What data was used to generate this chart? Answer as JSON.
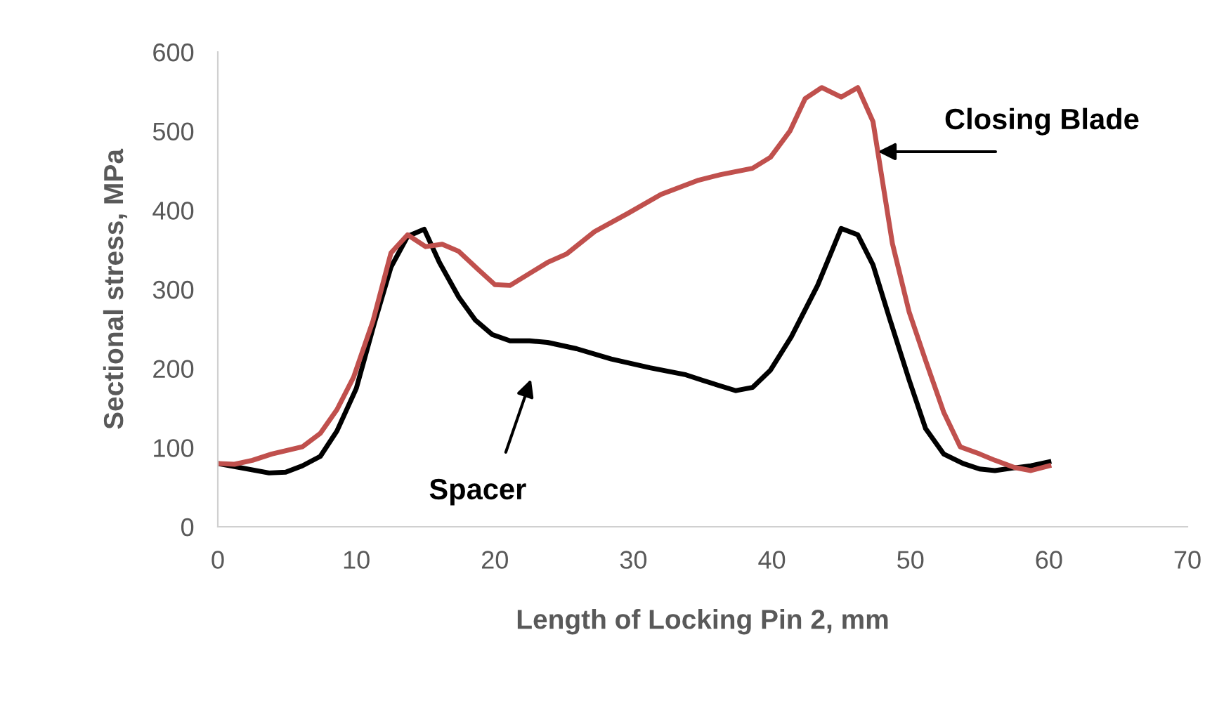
{
  "chart_data": {
    "type": "line",
    "xlabel": "Length of Locking Pin 2, mm",
    "ylabel": "Sectional stress, MPa",
    "xlim": [
      0,
      70
    ],
    "xticks": [
      0,
      10,
      20,
      30,
      40,
      50,
      60,
      70
    ],
    "ylim": [
      0,
      600
    ],
    "yticks": [
      0,
      100,
      200,
      300,
      400,
      500,
      600
    ],
    "grid": false,
    "legend": false,
    "marker": "none",
    "line_style": "solid",
    "series": [
      {
        "color": "#000000",
        "x": [
          0,
          3.7,
          4.9,
          6.1,
          7.4,
          8.6,
          10,
          11.3,
          12.5,
          13.7,
          14.9,
          16,
          17.4,
          18.6,
          19.8,
          21.1,
          22.5,
          23.8,
          25.9,
          28.4,
          31.2,
          33.8,
          35,
          37.4,
          38.6,
          39.9,
          41.4,
          43.3,
          45,
          46.2,
          47.3,
          48.5,
          49.9,
          51.1,
          52.4,
          53.8,
          55,
          56.1,
          57.3,
          58.7,
          60
        ],
        "values": [
          80,
          68,
          69,
          77,
          89,
          121,
          175,
          257,
          328,
          367,
          376,
          334,
          290,
          261,
          243,
          235,
          235,
          233,
          225,
          212,
          201,
          192,
          185,
          172,
          176,
          198,
          240,
          305,
          377,
          369,
          331,
          263,
          186,
          124,
          92,
          80,
          73,
          71,
          74,
          77,
          82
        ]
      },
      {
        "color": "#c0504d",
        "x": [
          0,
          1.2,
          2.5,
          3.9,
          6.1,
          7.4,
          8.6,
          9.8,
          11.2,
          12.5,
          13.7,
          15,
          16.2,
          17.4,
          18.8,
          20,
          21.1,
          23.8,
          25.2,
          27.2,
          29.6,
          32,
          34.7,
          36.3,
          38.6,
          39.9,
          41.3,
          42.4,
          43.6,
          45,
          46.2,
          47.3,
          48.7,
          49.9,
          51.1,
          52.4,
          53.6,
          55,
          56.1,
          57.5,
          58.7,
          60
        ],
        "values": [
          80,
          79,
          84,
          92,
          101,
          118,
          148,
          189,
          260,
          346,
          369,
          354,
          357,
          348,
          325,
          306,
          305,
          334,
          345,
          373,
          396,
          420,
          438,
          445,
          453,
          467,
          500,
          541,
          555,
          543,
          555,
          512,
          358,
          272,
          210,
          145,
          101,
          92,
          84,
          75,
          71,
          77
        ]
      }
    ],
    "annotations": [
      {
        "text": "Closing Blade",
        "x": 47.65,
        "y": 474
      },
      "Spacer"
    ]
  }
}
